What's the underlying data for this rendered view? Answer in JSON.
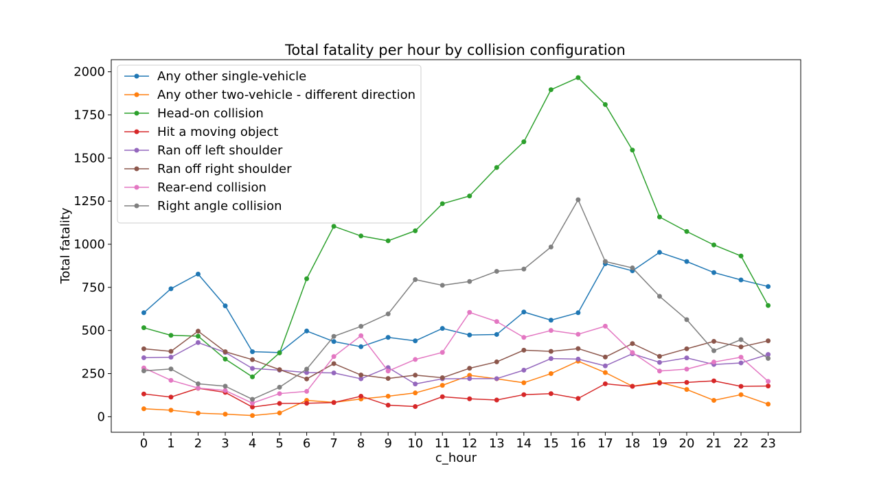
{
  "chart_data": {
    "type": "line",
    "title": "Total fatality per hour by collision configuration",
    "xlabel": "c_hour",
    "ylabel": "Total fatality",
    "x": [
      0,
      1,
      2,
      3,
      4,
      5,
      6,
      7,
      8,
      9,
      10,
      11,
      12,
      13,
      14,
      15,
      16,
      17,
      18,
      19,
      20,
      21,
      22,
      23
    ],
    "xlim": [
      -1.2,
      24.2
    ],
    "ylim": [
      -90,
      2070
    ],
    "yticks": [
      0,
      250,
      500,
      750,
      1000,
      1250,
      1500,
      1750,
      2000
    ],
    "grid": false,
    "legend_position": "top-left",
    "series": [
      {
        "name": "Any other single-vehicle",
        "color": "#1f77b4",
        "values": [
          603,
          742,
          827,
          643,
          377,
          372,
          497,
          436,
          406,
          460,
          440,
          512,
          474,
          477,
          607,
          560,
          603,
          887,
          846,
          953,
          900,
          836,
          793,
          755
        ]
      },
      {
        "name": "Any other two-vehicle - different direction",
        "color": "#ff7f0e",
        "values": [
          46,
          38,
          21,
          15,
          7,
          22,
          95,
          83,
          103,
          119,
          138,
          182,
          240,
          220,
          197,
          250,
          322,
          256,
          177,
          200,
          158,
          95,
          128,
          73
        ]
      },
      {
        "name": "Head-on collision",
        "color": "#2ca02c",
        "values": [
          516,
          472,
          467,
          334,
          231,
          370,
          800,
          1104,
          1048,
          1020,
          1078,
          1235,
          1280,
          1445,
          1594,
          1896,
          1966,
          1810,
          1546,
          1158,
          1074,
          996,
          932,
          645
        ]
      },
      {
        "name": "Hit a moving object",
        "color": "#d62728",
        "values": [
          132,
          114,
          165,
          141,
          56,
          77,
          78,
          82,
          119,
          67,
          59,
          116,
          104,
          97,
          128,
          134,
          106,
          191,
          176,
          195,
          199,
          208,
          176,
          178
        ]
      },
      {
        "name": "Ran off left shoulder",
        "color": "#9467bd",
        "values": [
          342,
          345,
          430,
          373,
          280,
          270,
          256,
          254,
          220,
          285,
          190,
          220,
          221,
          221,
          270,
          337,
          334,
          295,
          365,
          315,
          341,
          303,
          312,
          361
        ]
      },
      {
        "name": "Ran off right shoulder",
        "color": "#8c564b",
        "values": [
          394,
          379,
          496,
          377,
          331,
          273,
          219,
          308,
          242,
          222,
          241,
          226,
          281,
          318,
          386,
          379,
          395,
          346,
          424,
          350,
          394,
          437,
          405,
          440
        ]
      },
      {
        "name": "Rear-end collision",
        "color": "#e377c2",
        "values": [
          283,
          211,
          166,
          152,
          79,
          134,
          147,
          349,
          470,
          265,
          332,
          373,
          605,
          552,
          460,
          500,
          478,
          525,
          372,
          265,
          276,
          317,
          345,
          205
        ]
      },
      {
        "name": "Right angle collision",
        "color": "#7f7f7f",
        "values": [
          266,
          277,
          191,
          177,
          101,
          171,
          276,
          466,
          524,
          596,
          795,
          762,
          784,
          843,
          856,
          984,
          1258,
          900,
          863,
          698,
          563,
          383,
          447,
          338
        ]
      }
    ]
  }
}
